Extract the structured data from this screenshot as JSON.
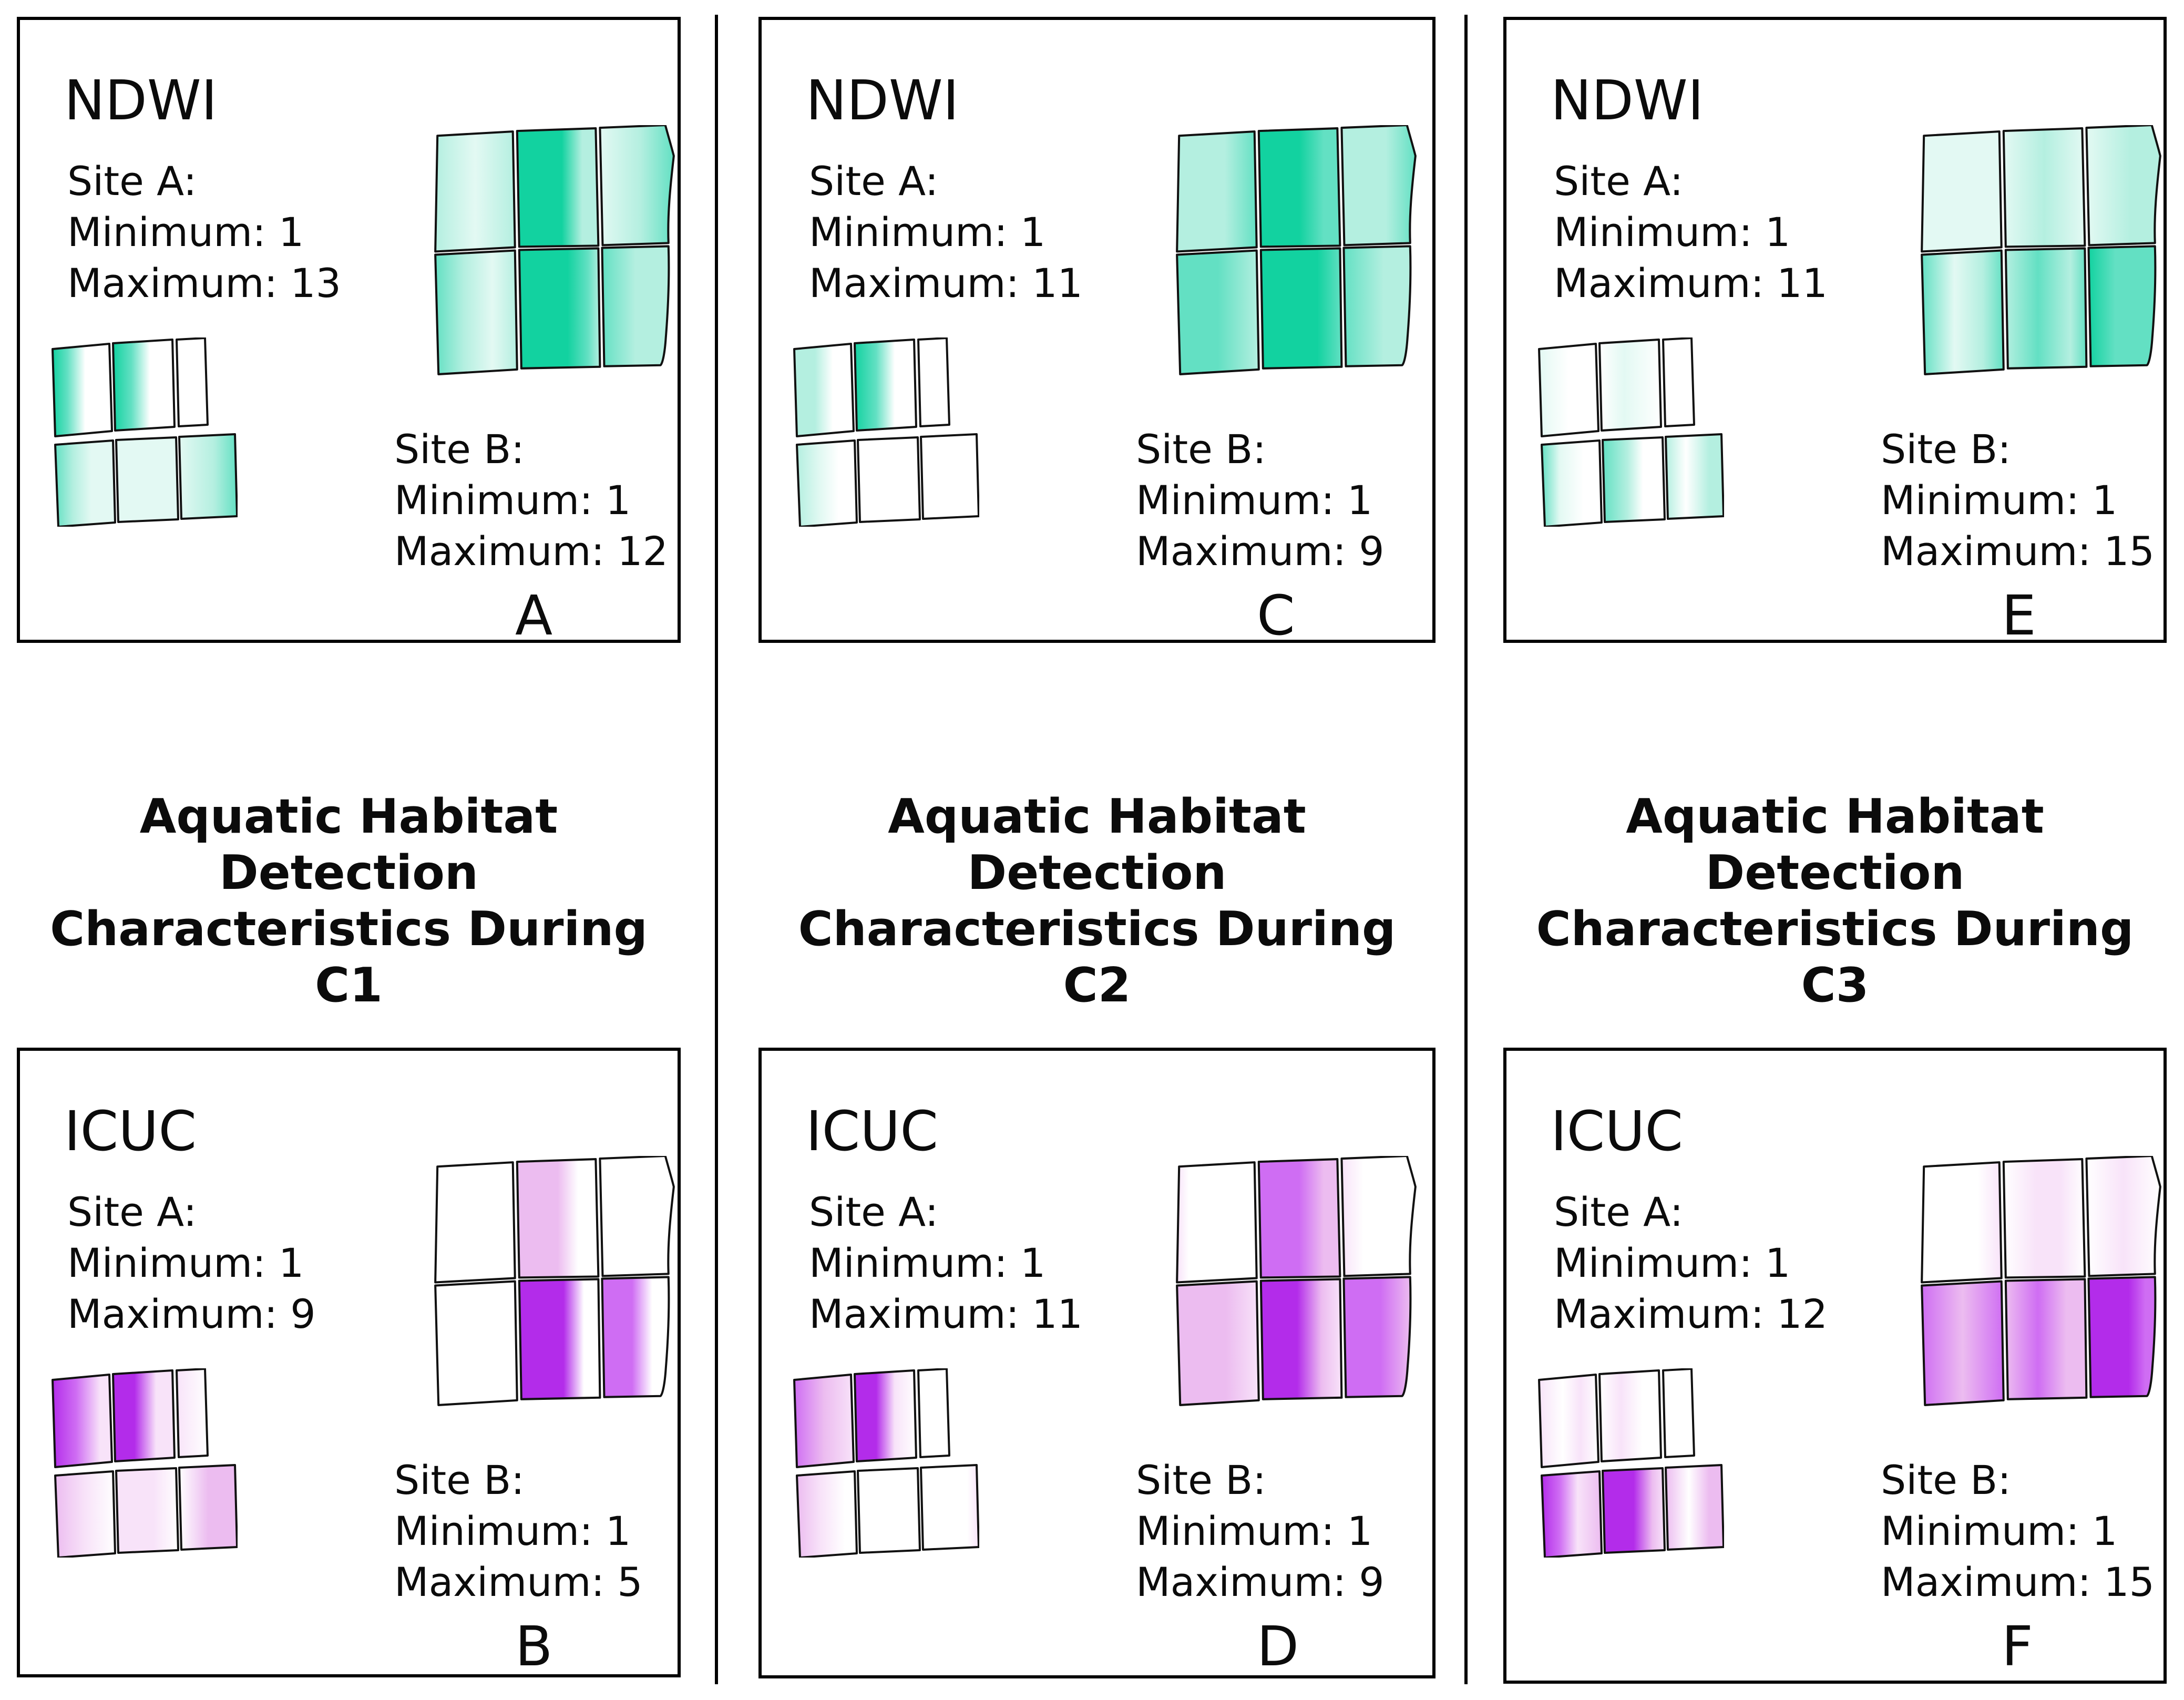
{
  "columns": [
    {
      "title_line1": "Aquatic Habitat Detection",
      "title_line2": "Characteristics During C1"
    },
    {
      "title_line1": "Aquatic Habitat Detection",
      "title_line2": "Characteristics During C2"
    },
    {
      "title_line1": "Aquatic Habitat Detection",
      "title_line2": "Characteristics During C3"
    }
  ],
  "palettes": {
    "ndwi": {
      "strong": "#12d2a0",
      "medium": "#63e0c3",
      "light": "#b4efe0",
      "xlight": "#e3f9f3",
      "white": "#ffffff"
    },
    "icuc": {
      "strong": "#b32cea",
      "medium": "#cf6df3",
      "light": "#ecbcf0",
      "xlight": "#f8e3f9",
      "white": "#ffffff"
    }
  },
  "panels": [
    {
      "letter": "A",
      "metric": "NDWI",
      "palette": "ndwi",
      "site_a": {
        "heading": "Site A:",
        "minimum_line": "Minimum: 1",
        "maximum_line": "Maximum: 13",
        "min": 1,
        "max": 13
      },
      "site_b": {
        "heading": "Site B:",
        "minimum_line": "Minimum: 1",
        "maximum_line": "Maximum: 12",
        "min": 1,
        "max": 12
      },
      "large_map_cells": [
        [
          [
            0,
            "light"
          ],
          [
            0.5,
            "xlight"
          ],
          [
            1,
            "light"
          ]
        ],
        [
          [
            0,
            "strong"
          ],
          [
            0.55,
            "strong"
          ],
          [
            0.8,
            "light"
          ],
          [
            1,
            "light"
          ]
        ],
        [
          [
            0,
            "xlight"
          ],
          [
            0.55,
            "light"
          ],
          [
            1,
            "medium"
          ]
        ],
        [
          [
            0,
            "medium"
          ],
          [
            0.35,
            "light"
          ],
          [
            0.7,
            "xlight"
          ],
          [
            1,
            "light"
          ]
        ],
        [
          [
            0,
            "strong"
          ],
          [
            0.6,
            "strong"
          ],
          [
            0.85,
            "medium"
          ],
          [
            1,
            "light"
          ]
        ],
        [
          [
            0,
            "medium"
          ],
          [
            0.5,
            "light"
          ],
          [
            1,
            "light"
          ]
        ]
      ],
      "small_map_cells": [
        [
          [
            0,
            "strong"
          ],
          [
            0.25,
            "medium"
          ],
          [
            0.55,
            "white"
          ],
          [
            1,
            "white"
          ]
        ],
        [
          [
            0,
            "strong"
          ],
          [
            0.3,
            "medium"
          ],
          [
            0.6,
            "white"
          ],
          [
            1,
            "white"
          ]
        ],
        [
          [
            0,
            "white"
          ],
          [
            1,
            "white"
          ]
        ],
        [
          [
            0,
            "medium"
          ],
          [
            0.3,
            "light"
          ],
          [
            0.6,
            "xlight"
          ],
          [
            1,
            "xlight"
          ]
        ],
        [
          [
            0,
            "xlight"
          ],
          [
            1,
            "xlight"
          ]
        ],
        [
          [
            0,
            "xlight"
          ],
          [
            0.6,
            "light"
          ],
          [
            1,
            "medium"
          ]
        ]
      ]
    },
    {
      "letter": "C",
      "metric": "NDWI",
      "palette": "ndwi",
      "site_a": {
        "heading": "Site A:",
        "minimum_line": "Minimum: 1",
        "maximum_line": "Maximum: 11",
        "min": 1,
        "max": 11
      },
      "site_b": {
        "heading": "Site B:",
        "minimum_line": "Minimum: 1",
        "maximum_line": "Maximum: 9",
        "min": 1,
        "max": 9
      },
      "large_map_cells": [
        [
          [
            0,
            "light"
          ],
          [
            0.6,
            "light"
          ],
          [
            1,
            "medium"
          ]
        ],
        [
          [
            0,
            "strong"
          ],
          [
            0.5,
            "strong"
          ],
          [
            0.8,
            "medium"
          ],
          [
            1,
            "medium"
          ]
        ],
        [
          [
            0,
            "light"
          ],
          [
            0.6,
            "light"
          ],
          [
            1,
            "medium"
          ]
        ],
        [
          [
            0,
            "medium"
          ],
          [
            0.5,
            "medium"
          ],
          [
            1,
            "light"
          ]
        ],
        [
          [
            0,
            "strong"
          ],
          [
            0.7,
            "strong"
          ],
          [
            1,
            "medium"
          ]
        ],
        [
          [
            0,
            "medium"
          ],
          [
            0.6,
            "light"
          ],
          [
            1,
            "light"
          ]
        ]
      ],
      "small_map_cells": [
        [
          [
            0,
            "light"
          ],
          [
            0.35,
            "light"
          ],
          [
            0.65,
            "white"
          ],
          [
            1,
            "white"
          ]
        ],
        [
          [
            0,
            "strong"
          ],
          [
            0.35,
            "medium"
          ],
          [
            0.65,
            "white"
          ],
          [
            1,
            "white"
          ]
        ],
        [
          [
            0,
            "white"
          ],
          [
            1,
            "white"
          ]
        ],
        [
          [
            0,
            "light"
          ],
          [
            0.4,
            "xlight"
          ],
          [
            0.7,
            "white"
          ],
          [
            1,
            "white"
          ]
        ],
        [
          [
            0,
            "white"
          ],
          [
            1,
            "white"
          ]
        ],
        [
          [
            0,
            "white"
          ],
          [
            1,
            "white"
          ]
        ]
      ]
    },
    {
      "letter": "E",
      "metric": "NDWI",
      "palette": "ndwi",
      "site_a": {
        "heading": "Site A:",
        "minimum_line": "Minimum: 1",
        "maximum_line": "Maximum: 11",
        "min": 1,
        "max": 11
      },
      "site_b": {
        "heading": "Site B:",
        "minimum_line": "Minimum: 1",
        "maximum_line": "Maximum: 15",
        "min": 1,
        "max": 15
      },
      "large_map_cells": [
        [
          [
            0,
            "xlight"
          ],
          [
            1,
            "xlight"
          ]
        ],
        [
          [
            0,
            "xlight"
          ],
          [
            0.5,
            "light"
          ],
          [
            1,
            "xlight"
          ]
        ],
        [
          [
            0,
            "xlight"
          ],
          [
            0.6,
            "light"
          ],
          [
            1,
            "light"
          ]
        ],
        [
          [
            0,
            "medium"
          ],
          [
            0.4,
            "xlight"
          ],
          [
            0.75,
            "light"
          ],
          [
            1,
            "medium"
          ]
        ],
        [
          [
            0,
            "light"
          ],
          [
            0.4,
            "medium"
          ],
          [
            0.8,
            "light"
          ],
          [
            1,
            "medium"
          ]
        ],
        [
          [
            0,
            "strong"
          ],
          [
            0.4,
            "medium"
          ],
          [
            1,
            "medium"
          ]
        ]
      ],
      "small_map_cells": [
        [
          [
            0,
            "xlight"
          ],
          [
            0.5,
            "white"
          ],
          [
            1,
            "white"
          ]
        ],
        [
          [
            0,
            "white"
          ],
          [
            0.4,
            "xlight"
          ],
          [
            1,
            "white"
          ]
        ],
        [
          [
            0,
            "white"
          ],
          [
            1,
            "white"
          ]
        ],
        [
          [
            0,
            "medium"
          ],
          [
            0.3,
            "xlight"
          ],
          [
            0.7,
            "white"
          ],
          [
            1,
            "white"
          ]
        ],
        [
          [
            0,
            "medium"
          ],
          [
            0.4,
            "light"
          ],
          [
            0.65,
            "white"
          ],
          [
            1,
            "white"
          ]
        ],
        [
          [
            0,
            "light"
          ],
          [
            0.35,
            "white"
          ],
          [
            0.75,
            "light"
          ],
          [
            1,
            "light"
          ]
        ]
      ]
    },
    {
      "letter": "B",
      "metric": "ICUC",
      "palette": "icuc",
      "site_a": {
        "heading": "Site A:",
        "minimum_line": "Minimum: 1",
        "maximum_line": "Maximum: 9",
        "min": 1,
        "max": 9
      },
      "site_b": {
        "heading": "Site B:",
        "minimum_line": "Minimum: 1",
        "maximum_line": "Maximum: 5",
        "min": 1,
        "max": 5
      },
      "large_map_cells": [
        [
          [
            0,
            "white"
          ],
          [
            1,
            "white"
          ]
        ],
        [
          [
            0,
            "light"
          ],
          [
            0.5,
            "light"
          ],
          [
            0.75,
            "white"
          ],
          [
            1,
            "white"
          ]
        ],
        [
          [
            0,
            "white"
          ],
          [
            1,
            "white"
          ]
        ],
        [
          [
            0,
            "white"
          ],
          [
            1,
            "white"
          ]
        ],
        [
          [
            0,
            "strong"
          ],
          [
            0.55,
            "strong"
          ],
          [
            0.8,
            "white"
          ],
          [
            1,
            "white"
          ]
        ],
        [
          [
            0,
            "medium"
          ],
          [
            0.45,
            "medium"
          ],
          [
            0.75,
            "white"
          ],
          [
            1,
            "white"
          ]
        ]
      ],
      "small_map_cells": [
        [
          [
            0,
            "strong"
          ],
          [
            0.4,
            "medium"
          ],
          [
            0.8,
            "xlight"
          ],
          [
            1,
            "xlight"
          ]
        ],
        [
          [
            0,
            "strong"
          ],
          [
            0.35,
            "strong"
          ],
          [
            0.7,
            "xlight"
          ],
          [
            1,
            "xlight"
          ]
        ],
        [
          [
            0,
            "xlight"
          ],
          [
            1,
            "white"
          ]
        ],
        [
          [
            0,
            "light"
          ],
          [
            0.5,
            "xlight"
          ],
          [
            1,
            "white"
          ]
        ],
        [
          [
            0,
            "xlight"
          ],
          [
            0.6,
            "xlight"
          ],
          [
            1,
            "white"
          ]
        ],
        [
          [
            0,
            "white"
          ],
          [
            0.5,
            "light"
          ],
          [
            1,
            "light"
          ]
        ]
      ]
    },
    {
      "letter": "D",
      "metric": "ICUC",
      "palette": "icuc",
      "site_a": {
        "heading": "Site A:",
        "minimum_line": "Minimum: 1",
        "maximum_line": "Maximum: 11",
        "min": 1,
        "max": 11
      },
      "site_b": {
        "heading": "Site B:",
        "minimum_line": "Minimum: 1",
        "maximum_line": "Maximum: 9",
        "min": 1,
        "max": 9
      },
      "large_map_cells": [
        [
          [
            0,
            "xlight"
          ],
          [
            0.15,
            "white"
          ],
          [
            1,
            "white"
          ]
        ],
        [
          [
            0,
            "medium"
          ],
          [
            0.5,
            "medium"
          ],
          [
            0.8,
            "light"
          ],
          [
            1,
            "light"
          ]
        ],
        [
          [
            0,
            "xlight"
          ],
          [
            0.3,
            "white"
          ],
          [
            1,
            "white"
          ]
        ],
        [
          [
            0,
            "light"
          ],
          [
            0.6,
            "light"
          ],
          [
            1,
            "xlight"
          ]
        ],
        [
          [
            0,
            "strong"
          ],
          [
            0.45,
            "strong"
          ],
          [
            0.75,
            "light"
          ],
          [
            1,
            "xlight"
          ]
        ],
        [
          [
            0,
            "medium"
          ],
          [
            0.55,
            "medium"
          ],
          [
            1,
            "light"
          ]
        ]
      ],
      "small_map_cells": [
        [
          [
            0,
            "medium"
          ],
          [
            0.5,
            "light"
          ],
          [
            1,
            "xlight"
          ]
        ],
        [
          [
            0,
            "strong"
          ],
          [
            0.35,
            "strong"
          ],
          [
            0.65,
            "xlight"
          ],
          [
            1,
            "white"
          ]
        ],
        [
          [
            0,
            "white"
          ],
          [
            1,
            "white"
          ]
        ],
        [
          [
            0,
            "light"
          ],
          [
            0.4,
            "xlight"
          ],
          [
            0.8,
            "white"
          ],
          [
            1,
            "white"
          ]
        ],
        [
          [
            0,
            "white"
          ],
          [
            1,
            "white"
          ]
        ],
        [
          [
            0,
            "white"
          ],
          [
            0.8,
            "white"
          ],
          [
            1,
            "xlight"
          ]
        ]
      ]
    },
    {
      "letter": "F",
      "metric": "ICUC",
      "palette": "icuc",
      "site_a": {
        "heading": "Site A:",
        "minimum_line": "Minimum: 1",
        "maximum_line": "Maximum: 12",
        "min": 1,
        "max": 12
      },
      "site_b": {
        "heading": "Site B:",
        "minimum_line": "Minimum: 1",
        "maximum_line": "Maximum: 15",
        "min": 1,
        "max": 15
      },
      "large_map_cells": [
        [
          [
            0,
            "white"
          ],
          [
            0.7,
            "white"
          ],
          [
            1,
            "xlight"
          ]
        ],
        [
          [
            0,
            "white"
          ],
          [
            0.4,
            "xlight"
          ],
          [
            0.7,
            "xlight"
          ],
          [
            1,
            "white"
          ]
        ],
        [
          [
            0,
            "white"
          ],
          [
            0.5,
            "xlight"
          ],
          [
            1,
            "white"
          ]
        ],
        [
          [
            0,
            "medium"
          ],
          [
            0.5,
            "light"
          ],
          [
            1,
            "medium"
          ]
        ],
        [
          [
            0,
            "light"
          ],
          [
            0.4,
            "medium"
          ],
          [
            0.75,
            "light"
          ],
          [
            1,
            "light"
          ]
        ],
        [
          [
            0,
            "strong"
          ],
          [
            0.6,
            "strong"
          ],
          [
            0.85,
            "medium"
          ],
          [
            1,
            "medium"
          ]
        ]
      ],
      "small_map_cells": [
        [
          [
            0,
            "xlight"
          ],
          [
            0.4,
            "white"
          ],
          [
            0.7,
            "xlight"
          ],
          [
            1,
            "white"
          ]
        ],
        [
          [
            0,
            "white"
          ],
          [
            0.35,
            "xlight"
          ],
          [
            0.7,
            "white"
          ],
          [
            1,
            "white"
          ]
        ],
        [
          [
            0,
            "white"
          ],
          [
            1,
            "white"
          ]
        ],
        [
          [
            0,
            "strong"
          ],
          [
            0.3,
            "medium"
          ],
          [
            0.6,
            "xlight"
          ],
          [
            1,
            "light"
          ]
        ],
        [
          [
            0,
            "strong"
          ],
          [
            0.5,
            "strong"
          ],
          [
            0.8,
            "light"
          ],
          [
            1,
            "xlight"
          ]
        ],
        [
          [
            0,
            "light"
          ],
          [
            0.4,
            "white"
          ],
          [
            0.75,
            "light"
          ],
          [
            1,
            "light"
          ]
        ]
      ]
    }
  ]
}
